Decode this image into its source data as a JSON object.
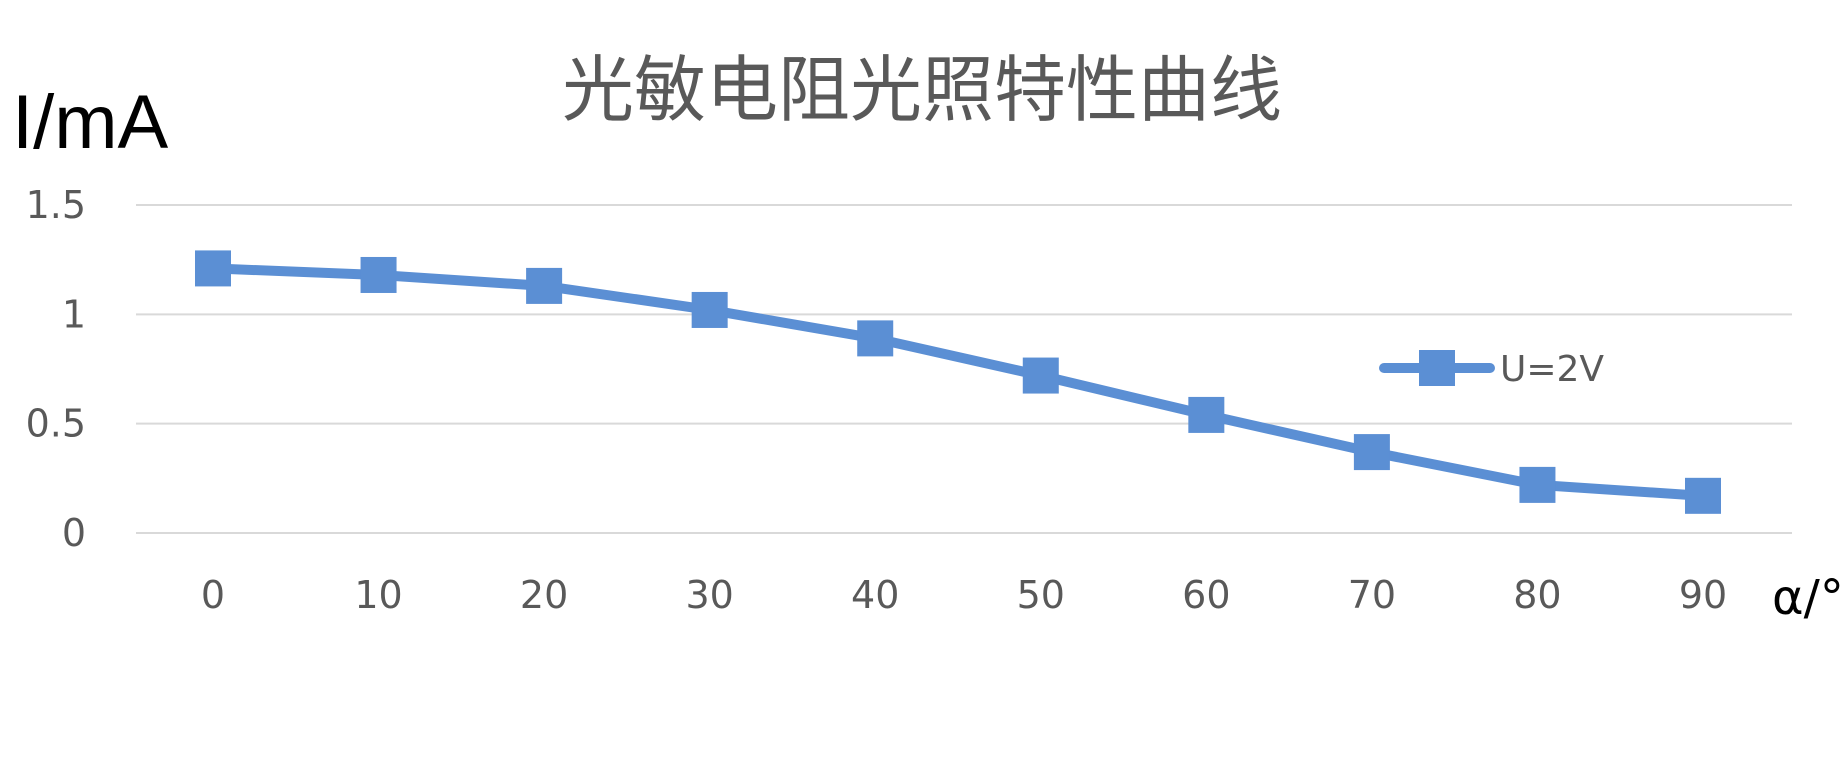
{
  "chart_data": {
    "type": "line",
    "title": "光敏电阻光照特性曲线",
    "ylabel": "I/mA",
    "xlabel": "α/°",
    "x": [
      0,
      10,
      20,
      30,
      40,
      50,
      60,
      70,
      80,
      90
    ],
    "categories": [
      "0",
      "10",
      "20",
      "30",
      "40",
      "50",
      "60",
      "70",
      "80",
      "90"
    ],
    "y_ticks": [
      "0",
      "0.5",
      "1",
      "1.5"
    ],
    "ylim": [
      0,
      1.5
    ],
    "grid": true,
    "legend_position": "right",
    "series": [
      {
        "name": "U=2V",
        "color": "#5b8fd4",
        "marker": "square",
        "values": [
          1.21,
          1.18,
          1.13,
          1.02,
          0.89,
          0.72,
          0.54,
          0.37,
          0.22,
          0.17
        ]
      }
    ]
  }
}
